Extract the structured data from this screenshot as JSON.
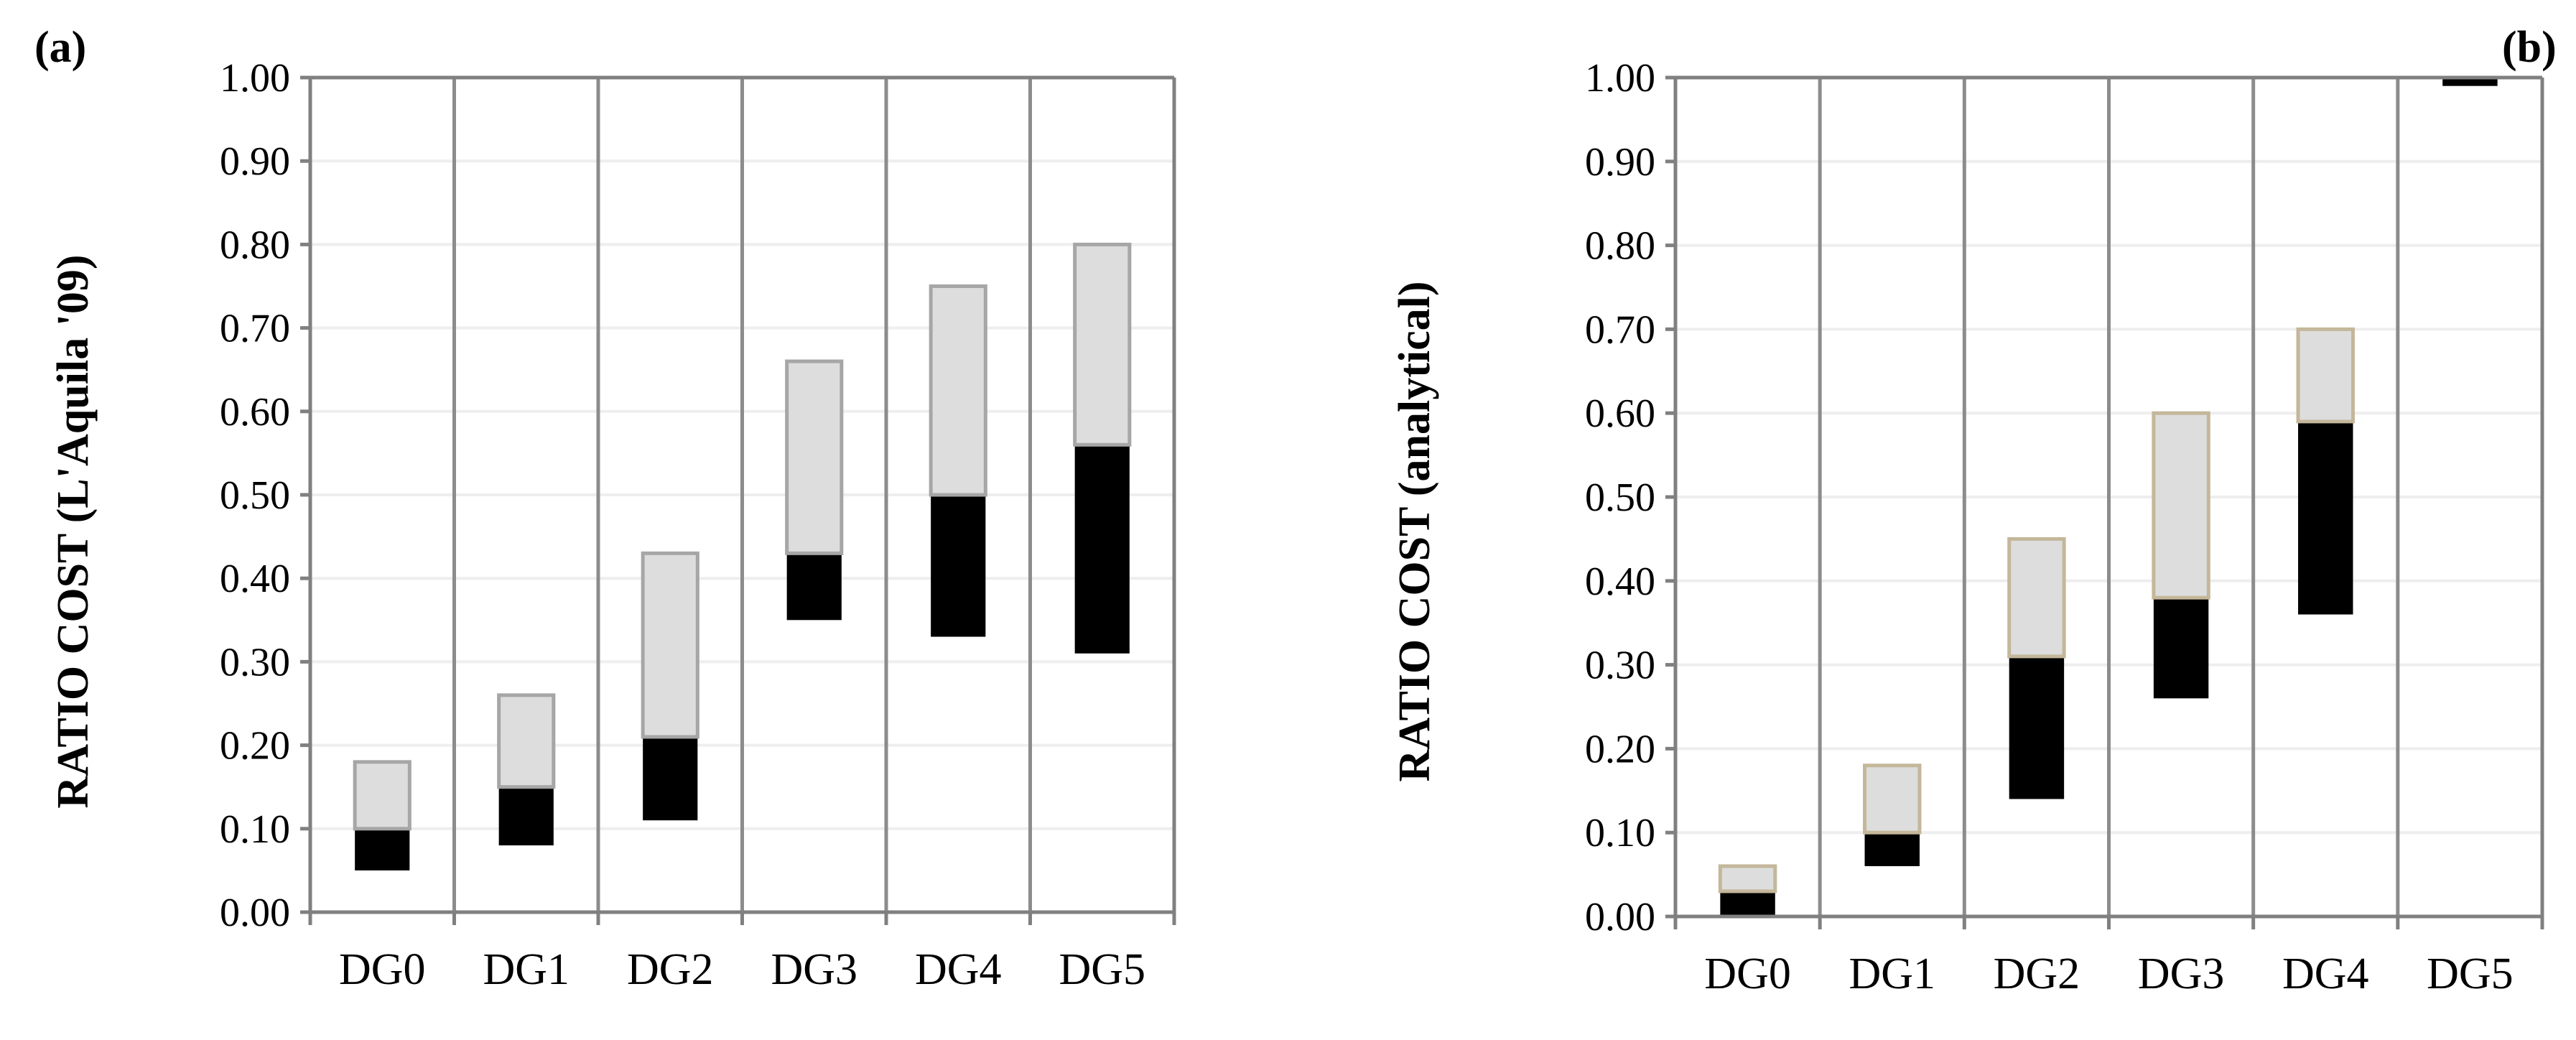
{
  "chart_data": [
    {
      "type": "bar",
      "panel": "(a)",
      "ylabel": "RATIO COST  (L'Aquila '09)",
      "xlabel": "",
      "categories": [
        "DG0",
        "DG1",
        "DG2",
        "DG3",
        "DG4",
        "DG5"
      ],
      "yticks": [
        "0.00",
        "0.10",
        "0.20",
        "0.30",
        "0.40",
        "0.50",
        "0.60",
        "0.70",
        "0.80",
        "0.90",
        "1.00"
      ],
      "ylim": [
        0,
        1
      ],
      "grid": true,
      "series": [
        {
          "name": "lower range",
          "color": "#000000",
          "low": [
            0.05,
            0.08,
            0.11,
            0.35,
            0.33,
            0.31
          ],
          "high": [
            0.1,
            0.15,
            0.21,
            0.43,
            0.5,
            0.56
          ]
        },
        {
          "name": "upper range",
          "color": "#dddddd",
          "stroke": "#a6a6a6",
          "low": [
            0.1,
            0.15,
            0.21,
            0.43,
            0.5,
            0.56
          ],
          "high": [
            0.18,
            0.26,
            0.43,
            0.66,
            0.75,
            0.8
          ]
        }
      ]
    },
    {
      "type": "bar",
      "panel": "(b)",
      "ylabel": "RATIO COST  (analytical)",
      "xlabel": "",
      "categories": [
        "DG0",
        "DG1",
        "DG2",
        "DG3",
        "DG4",
        "DG5"
      ],
      "yticks": [
        "0.00",
        "0.10",
        "0.20",
        "0.30",
        "0.40",
        "0.50",
        "0.60",
        "0.70",
        "0.80",
        "0.90",
        "1.00"
      ],
      "ylim": [
        0,
        1
      ],
      "grid": true,
      "series": [
        {
          "name": "lower range",
          "color": "#000000",
          "low": [
            0.0,
            0.06,
            0.14,
            0.26,
            0.36,
            0.99
          ],
          "high": [
            0.03,
            0.1,
            0.31,
            0.38,
            0.59,
            1.0
          ]
        },
        {
          "name": "upper range",
          "color": "#dddddd",
          "stroke": "#c4b79a",
          "low": [
            0.03,
            0.1,
            0.31,
            0.38,
            0.59,
            1.0
          ],
          "high": [
            0.06,
            0.18,
            0.45,
            0.6,
            0.7,
            1.0
          ]
        }
      ]
    }
  ]
}
